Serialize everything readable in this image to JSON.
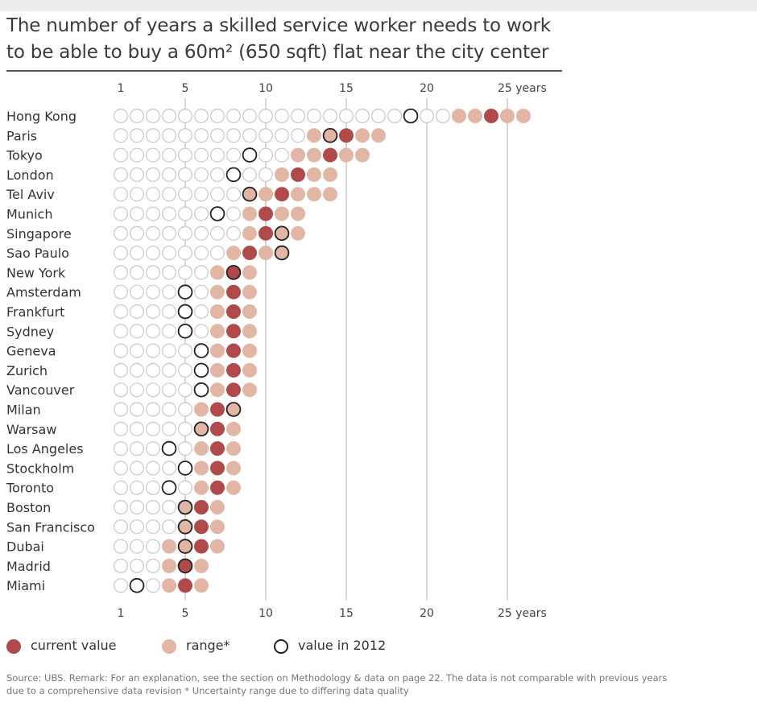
{
  "title_line1": "The number of years a skilled service worker needs to work",
  "title_line2": "to be able to buy a 60m² (650 sqft) flat near the city center",
  "legend": {
    "current": "current value",
    "range": "range*",
    "prev": "value in 2012"
  },
  "source_line1": "Source: UBS. Remark: For an explanation, see the section on Methodology & data on page 22. The data is not comparable with previous years",
  "source_line2": "due to a comprehensive data revision   * Uncertainty range due to differing data quality",
  "colors": {
    "current": "#b04a4a",
    "range": "#e2b6a5",
    "empty_stroke": "#c8c8c8",
    "prev_stroke": "#222222",
    "gridline": "#c4c4c4"
  },
  "chart_data": {
    "type": "dot-plot",
    "title": "The number of years a skilled service worker needs to work to be able to buy a 60m² (650 sqft) flat near the city center",
    "x_ticks": [
      {
        "value": 1,
        "label": "1"
      },
      {
        "value": 5,
        "label": "5"
      },
      {
        "value": 10,
        "label": "10"
      },
      {
        "value": 15,
        "label": "15"
      },
      {
        "value": 20,
        "label": "20"
      },
      {
        "value": 25,
        "label": "25 years"
      }
    ],
    "xlim": [
      1,
      26
    ],
    "series_names": [
      "current value",
      "range*",
      "value in 2012"
    ],
    "cities": [
      {
        "name": "Hong Kong",
        "current": 24,
        "range": [
          22,
          26
        ],
        "prev2012": 19
      },
      {
        "name": "Paris",
        "current": 15,
        "range": [
          13,
          17
        ],
        "prev2012": 14
      },
      {
        "name": "Tokyo",
        "current": 14,
        "range": [
          12,
          16
        ],
        "prev2012": 9
      },
      {
        "name": "London",
        "current": 12,
        "range": [
          11,
          14
        ],
        "prev2012": 8
      },
      {
        "name": "Tel Aviv",
        "current": 11,
        "range": [
          9,
          14
        ],
        "prev2012": 9
      },
      {
        "name": "Munich",
        "current": 10,
        "range": [
          9,
          12
        ],
        "prev2012": 7
      },
      {
        "name": "Singapore",
        "current": 10,
        "range": [
          9,
          12
        ],
        "prev2012": 11
      },
      {
        "name": "Sao Paulo",
        "current": 9,
        "range": [
          8,
          11
        ],
        "prev2012": 11
      },
      {
        "name": "New York",
        "current": 8,
        "range": [
          7,
          9
        ],
        "prev2012": 8
      },
      {
        "name": "Amsterdam",
        "current": 8,
        "range": [
          7,
          9
        ],
        "prev2012": 5
      },
      {
        "name": "Frankfurt",
        "current": 8,
        "range": [
          7,
          9
        ],
        "prev2012": 5
      },
      {
        "name": "Sydney",
        "current": 8,
        "range": [
          7,
          9
        ],
        "prev2012": 5
      },
      {
        "name": "Geneva",
        "current": 8,
        "range": [
          7,
          9
        ],
        "prev2012": 6
      },
      {
        "name": "Zurich",
        "current": 8,
        "range": [
          7,
          9
        ],
        "prev2012": 6
      },
      {
        "name": "Vancouver",
        "current": 8,
        "range": [
          7,
          9
        ],
        "prev2012": 6
      },
      {
        "name": "Milan",
        "current": 7,
        "range": [
          6,
          8
        ],
        "prev2012": 8
      },
      {
        "name": "Warsaw",
        "current": 7,
        "range": [
          6,
          8
        ],
        "prev2012": 6
      },
      {
        "name": "Los Angeles",
        "current": 7,
        "range": [
          6,
          8
        ],
        "prev2012": 4
      },
      {
        "name": "Stockholm",
        "current": 7,
        "range": [
          6,
          8
        ],
        "prev2012": 5
      },
      {
        "name": "Toronto",
        "current": 7,
        "range": [
          6,
          8
        ],
        "prev2012": 4
      },
      {
        "name": "Boston",
        "current": 6,
        "range": [
          5,
          7
        ],
        "prev2012": 5
      },
      {
        "name": "San Francisco",
        "current": 6,
        "range": [
          5,
          7
        ],
        "prev2012": 5
      },
      {
        "name": "Dubai",
        "current": 6,
        "range": [
          4,
          7
        ],
        "prev2012": 5
      },
      {
        "name": "Madrid",
        "current": 5,
        "range": [
          4,
          6
        ],
        "prev2012": 5
      },
      {
        "name": "Miami",
        "current": 5,
        "range": [
          4,
          6
        ],
        "prev2012": 2
      }
    ]
  }
}
